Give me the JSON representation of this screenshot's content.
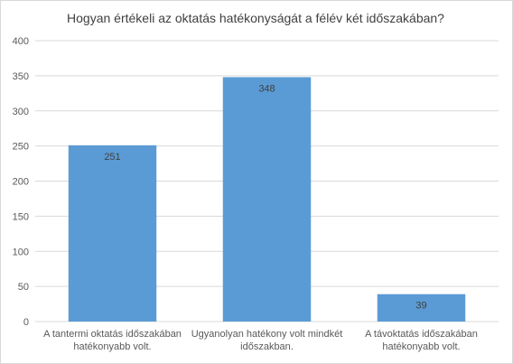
{
  "chart_data": {
    "type": "bar",
    "title": "Hogyan értékeli az oktatás hatékonyságát a félév két időszakában?",
    "categories": [
      [
        "A tantermi oktatás időszakában",
        "hatékonyabb volt."
      ],
      [
        "Ugyanolyan hatékony volt mindkét",
        "időszakban."
      ],
      [
        "A távoktatás időszakában",
        "hatékonyabb volt."
      ]
    ],
    "values": [
      251,
      348,
      39
    ],
    "ylim": [
      0,
      400
    ],
    "yticks": [
      0,
      50,
      100,
      150,
      200,
      250,
      300,
      350,
      400
    ],
    "grid": true,
    "legend": "none",
    "xlabel": "",
    "ylabel": "",
    "bar_color": "#5b9bd5",
    "grid_color": "#d9d9d9"
  }
}
